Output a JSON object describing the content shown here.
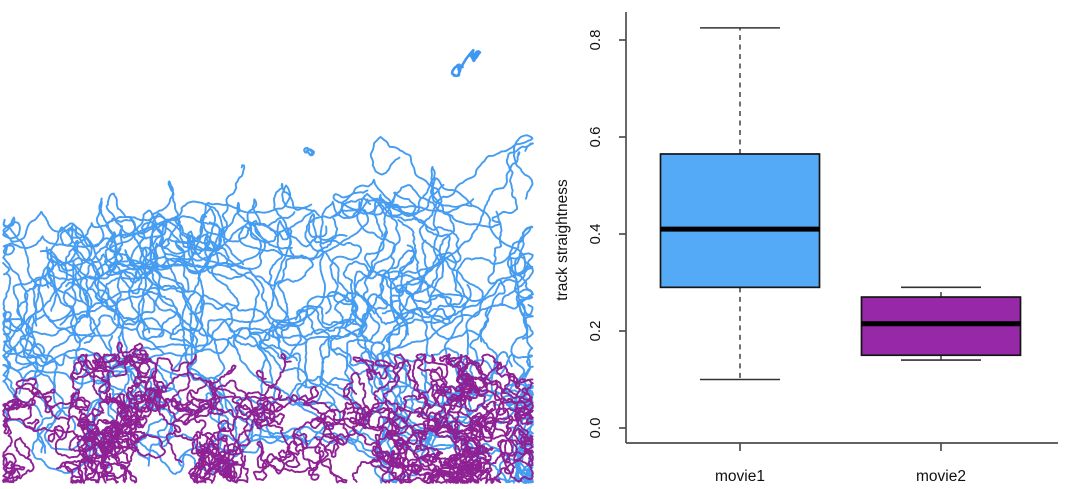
{
  "tracks_panel": {
    "name": "cell-track-visualization",
    "background": "#ffffff",
    "seed": 11,
    "groups": [
      {
        "name": "movie1-tracks",
        "color": "#459CF0",
        "count": 82,
        "style": "directed-upward",
        "stroke_width": 1.9
      },
      {
        "name": "movie2-tracks",
        "color": "#8E2194",
        "count": 52,
        "style": "confined-bottom",
        "stroke_width": 1.9
      }
    ],
    "blobs": [
      {
        "name": "isolated-blue-blob-top-right",
        "color": "#3E97F0",
        "lobes": [
          [
            477,
            55
          ],
          [
            459,
            69
          ]
        ],
        "radius": 8,
        "steps": 34,
        "stroke_width": 2.6
      },
      {
        "name": "small-blue-blob-mid",
        "color": "#459CF0",
        "lobes": [
          [
            309,
            151
          ]
        ],
        "radius": 6,
        "steps": 26,
        "stroke_width": 2.2
      }
    ]
  },
  "chart_data": {
    "type": "boxplot",
    "title": "",
    "xlabel": "",
    "ylabel": "track straightness",
    "categories": [
      "movie1",
      "movie2"
    ],
    "yticks": [
      0.0,
      0.2,
      0.4,
      0.6,
      0.8
    ],
    "ylim": [
      0.0,
      0.88
    ],
    "grid": false,
    "legend": "none",
    "series": [
      {
        "name": "movie1",
        "color": "#55AAF8",
        "min": 0.1,
        "q1": 0.29,
        "median": 0.41,
        "q3": 0.565,
        "max": 0.825
      },
      {
        "name": "movie2",
        "color": "#9728A8",
        "min": 0.14,
        "q1": 0.15,
        "median": 0.215,
        "q3": 0.27,
        "max": 0.29
      }
    ]
  }
}
